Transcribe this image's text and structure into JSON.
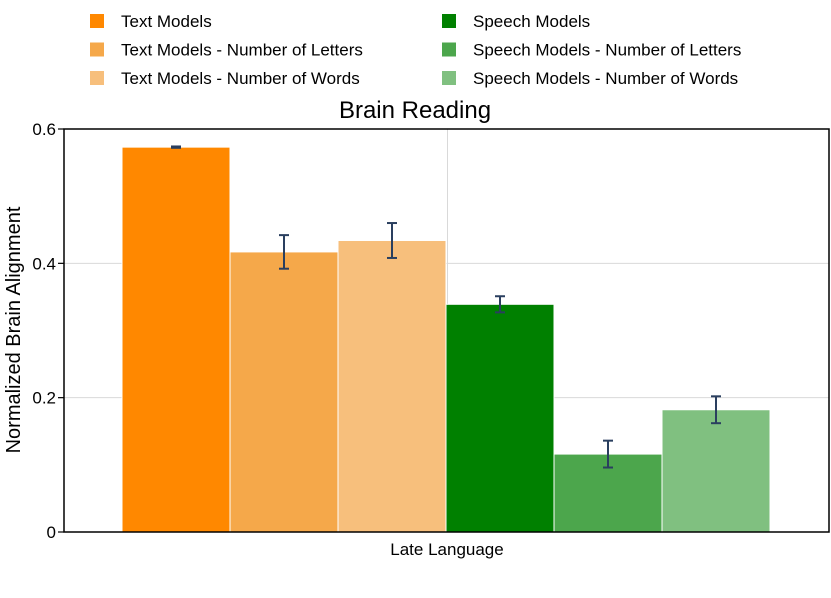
{
  "chart_data": {
    "type": "bar",
    "title": "Brain Reading",
    "xlabel": "Late Language",
    "ylabel": "Normalized Brain Alignment",
    "ylim": [
      0,
      0.6
    ],
    "yticks": [
      0,
      0.2,
      0.4,
      0.6
    ],
    "ytick_labels": [
      "0",
      "0.2",
      "0.4",
      "0.6"
    ],
    "categories": [
      "Late Language"
    ],
    "grid": true,
    "legend_position": "top",
    "series": [
      {
        "name": "Text Models",
        "color": "#ff8800",
        "values": [
          0.573
        ],
        "error": [
          0.001
        ]
      },
      {
        "name": "Text Models - Number of Letters",
        "color": "#f5a84a",
        "values": [
          0.417
        ],
        "error": [
          0.025
        ]
      },
      {
        "name": "Text Models - Number of Words",
        "color": "#f7bf7c",
        "values": [
          0.434
        ],
        "error": [
          0.026
        ]
      },
      {
        "name": "Speech Models",
        "color": "#008000",
        "values": [
          0.339
        ],
        "error": [
          0.012
        ]
      },
      {
        "name": "Speech Models - Number of Letters",
        "color": "#4ca64c",
        "values": [
          0.116
        ],
        "error": [
          0.02
        ]
      },
      {
        "name": "Speech Models - Number of Words",
        "color": "#80c080",
        "values": [
          0.182
        ],
        "error": [
          0.02
        ]
      }
    ]
  }
}
